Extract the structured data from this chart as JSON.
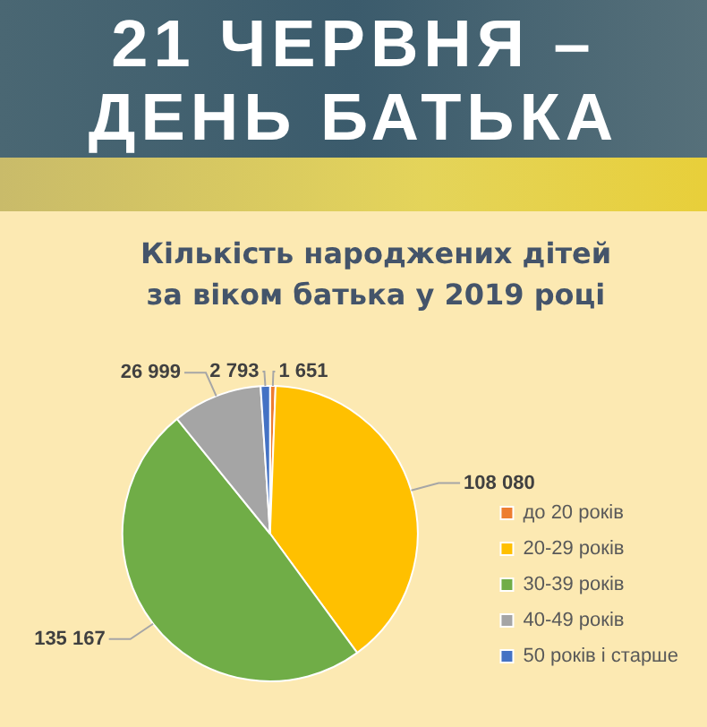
{
  "chart_data": {
    "type": "pie",
    "title": "21 ЧЕРВНЯ – ДЕНЬ БАТЬКА",
    "subtitle": "Кількість народжених дітей за віком батька у 2019 році",
    "categories": [
      "до 20 років",
      "20-29 років",
      "30-39 років",
      "40-49 років",
      "50 років і старше"
    ],
    "values": [
      1651,
      108080,
      135167,
      26999,
      2793
    ],
    "value_labels": [
      "1 651",
      "108 080",
      "135 167",
      "26 999",
      "2 793"
    ],
    "colors": [
      "#ed7d31",
      "#ffc000",
      "#70ad47",
      "#a5a5a5",
      "#4472c4"
    ],
    "legend": "bottom right"
  }
}
